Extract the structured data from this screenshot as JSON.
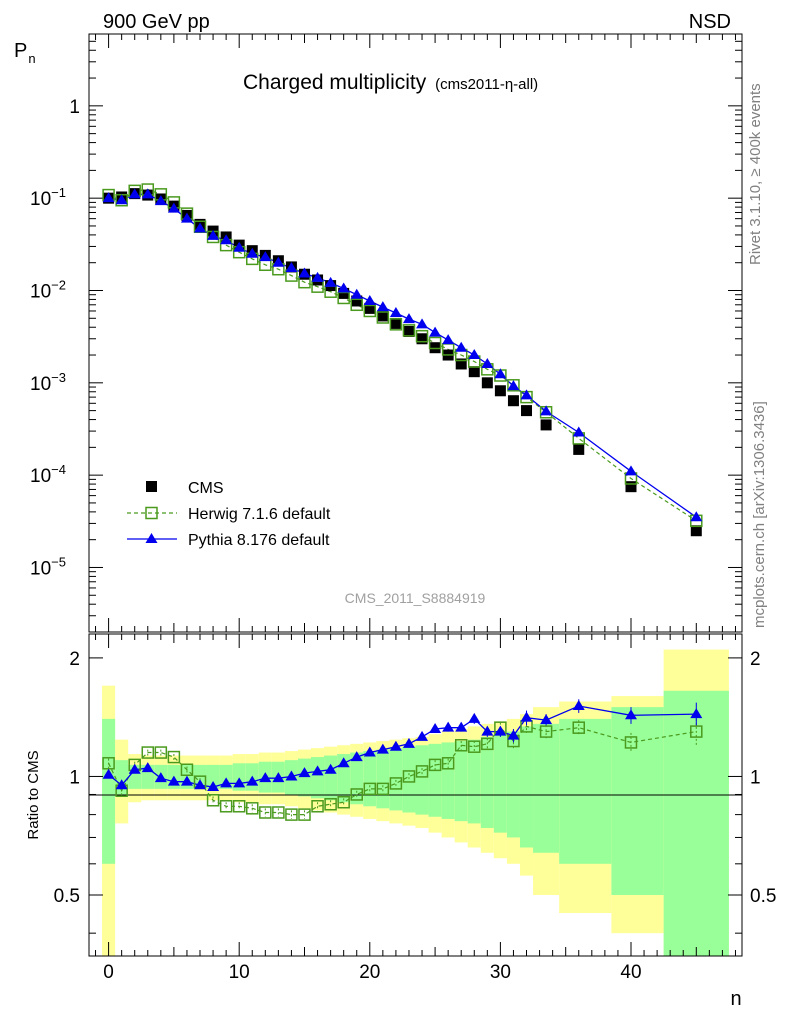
{
  "header": {
    "left": "900 GeV pp",
    "right": "NSD"
  },
  "title": {
    "main": "Charged multiplicity",
    "sub": "(cms2011-η-all)"
  },
  "watermark": "CMS_2011_S8884919",
  "side_texts": {
    "rivet": "Rivet 3.1.10, ≥ 400k events",
    "mcplots": "mcplots.cern.ch [arXiv:1306.3436]"
  },
  "colors": {
    "data": "#000000",
    "herwig": "#4a9a1e",
    "pythia": "#0000ee",
    "band_outer": "#ffff99",
    "band_inner": "#99ff99"
  },
  "legend": [
    {
      "label": "CMS",
      "icon": "square-filled"
    },
    {
      "label": "Herwig 7.1.6 default",
      "icon": "square-open-dashed"
    },
    {
      "label": "Pythia 8.176 default",
      "icon": "triangle-filled-line"
    }
  ],
  "chart_data": [
    {
      "type": "scatter",
      "yscale": "log",
      "ylabel": "P_n",
      "ylim": [
        2e-06,
        6
      ],
      "xlim": [
        -1.5,
        48.5
      ],
      "yticks": [
        {
          "value": 1,
          "base": "1",
          "exp": ""
        },
        {
          "value": 0.1,
          "base": "10",
          "exp": "−1"
        },
        {
          "value": 0.01,
          "base": "10",
          "exp": "−2"
        },
        {
          "value": 0.001,
          "base": "10",
          "exp": "−3"
        },
        {
          "value": 0.0001,
          "base": "10",
          "exp": "−4"
        },
        {
          "value": 1e-05,
          "base": "10",
          "exp": "−5"
        }
      ],
      "series": [
        {
          "name": "CMS",
          "x": [
            0,
            1,
            2,
            3,
            4,
            5,
            6,
            7,
            8,
            9,
            10,
            11,
            12,
            13,
            14,
            15,
            16,
            17,
            18,
            19,
            20,
            21,
            22,
            23,
            24,
            25,
            26,
            27,
            28,
            29,
            30,
            31,
            32,
            33.5,
            36,
            40,
            45
          ],
          "values": [
            0.1,
            0.103,
            0.112,
            0.108,
            0.098,
            0.082,
            0.065,
            0.052,
            0.044,
            0.038,
            0.031,
            0.027,
            0.024,
            0.021,
            0.018,
            0.015,
            0.013,
            0.0113,
            0.0093,
            0.0077,
            0.0064,
            0.0053,
            0.0044,
            0.0036,
            0.003,
            0.0024,
            0.002,
            0.0016,
            0.00132,
            0.001,
            0.00082,
            0.00064,
            0.0005,
            0.00035,
            0.00019,
            7.5e-05,
            2.5e-05
          ]
        },
        {
          "name": "Herwig 7.1.6 default",
          "x": [
            0,
            1,
            2,
            3,
            4,
            5,
            6,
            7,
            8,
            9,
            10,
            11,
            12,
            13,
            14,
            15,
            16,
            17,
            18,
            19,
            20,
            21,
            22,
            23,
            24,
            25,
            26,
            27,
            28,
            29,
            30,
            31,
            32,
            33.5,
            36,
            40,
            45
          ],
          "values": [
            0.108,
            0.095,
            0.12,
            0.124,
            0.11,
            0.09,
            0.068,
            0.049,
            0.038,
            0.031,
            0.026,
            0.022,
            0.019,
            0.017,
            0.0145,
            0.0123,
            0.011,
            0.0097,
            0.0083,
            0.007,
            0.006,
            0.0051,
            0.0043,
            0.0037,
            0.0032,
            0.0027,
            0.0023,
            0.002,
            0.0017,
            0.0014,
            0.0012,
            0.00094,
            0.0007,
            0.00048,
            0.00025,
            9.2e-05,
            3.2e-05
          ]
        },
        {
          "name": "Pythia 8.176 default",
          "x": [
            0,
            1,
            2,
            3,
            4,
            5,
            6,
            7,
            8,
            9,
            10,
            11,
            12,
            13,
            14,
            15,
            16,
            17,
            18,
            19,
            20,
            21,
            22,
            23,
            24,
            25,
            26,
            27,
            28,
            29,
            30,
            31,
            32,
            33.5,
            36,
            40,
            45
          ],
          "values": [
            0.1,
            0.095,
            0.11,
            0.11,
            0.093,
            0.077,
            0.06,
            0.047,
            0.039,
            0.035,
            0.029,
            0.025,
            0.023,
            0.02,
            0.0175,
            0.0153,
            0.0137,
            0.0121,
            0.0105,
            0.009,
            0.0077,
            0.0066,
            0.0057,
            0.0049,
            0.0043,
            0.0035,
            0.0029,
            0.0024,
            0.002,
            0.0016,
            0.00124,
            0.00092,
            0.00073,
            0.00049,
            0.00029,
            0.00011,
            3.5e-05
          ]
        }
      ]
    },
    {
      "type": "scatter",
      "ylabel": "Ratio to CMS",
      "xlabel": "n",
      "ylim": [
        0.35,
        2.3
      ],
      "xlim": [
        -1.5,
        48.5
      ],
      "xticks": [
        0,
        10,
        20,
        30,
        40
      ],
      "yticks": [
        0.5,
        1,
        2
      ],
      "bands": {
        "edges": [
          -0.5,
          0.5,
          1.5,
          2.5,
          3.5,
          4.5,
          5.5,
          6.5,
          7.5,
          8.5,
          9.5,
          10.5,
          11.5,
          12.5,
          13.5,
          14.5,
          15.5,
          16.5,
          17.5,
          18.5,
          19.5,
          20.5,
          21.5,
          22.5,
          23.5,
          24.5,
          25.5,
          26.5,
          27.5,
          28.5,
          29.5,
          30.5,
          31.5,
          32.5,
          34.5,
          38.5,
          42.5,
          47.5
        ],
        "outer": [
          0.7,
          0.24,
          0.14,
          0.13,
          0.13,
          0.13,
          0.13,
          0.13,
          0.13,
          0.13,
          0.14,
          0.14,
          0.15,
          0.15,
          0.16,
          0.17,
          0.18,
          0.19,
          0.2,
          0.21,
          0.22,
          0.23,
          0.24,
          0.25,
          0.26,
          0.28,
          0.3,
          0.32,
          0.34,
          0.36,
          0.38,
          0.4,
          0.44,
          0.5,
          0.55,
          0.6,
          1.1
        ],
        "inner": [
          0.4,
          0.1,
          0.07,
          0.07,
          0.07,
          0.07,
          0.07,
          0.07,
          0.07,
          0.07,
          0.08,
          0.08,
          0.09,
          0.09,
          0.1,
          0.11,
          0.12,
          0.13,
          0.14,
          0.15,
          0.16,
          0.17,
          0.18,
          0.19,
          0.2,
          0.21,
          0.22,
          0.23,
          0.24,
          0.26,
          0.28,
          0.3,
          0.34,
          0.36,
          0.4,
          0.5,
          0.65
        ]
      },
      "series": [
        {
          "name": "Herwig 7.1.6 default",
          "x": [
            0,
            1,
            2,
            3,
            4,
            5,
            6,
            7,
            8,
            9,
            10,
            11,
            12,
            13,
            14,
            15,
            16,
            17,
            18,
            19,
            20,
            21,
            22,
            23,
            24,
            25,
            26,
            27,
            28,
            29,
            30,
            31,
            32,
            33.5,
            36,
            40,
            45
          ],
          "values": [
            1.08,
            0.92,
            1.07,
            1.15,
            1.15,
            1.12,
            1.04,
            0.97,
            0.87,
            0.84,
            0.84,
            0.83,
            0.81,
            0.81,
            0.8,
            0.8,
            0.84,
            0.85,
            0.86,
            0.9,
            0.93,
            0.93,
            0.96,
            1.0,
            1.03,
            1.07,
            1.08,
            1.2,
            1.19,
            1.21,
            1.33,
            1.23,
            1.34,
            1.3,
            1.33,
            1.22,
            1.3
          ]
        },
        {
          "name": "Pythia 8.176 default",
          "x": [
            0,
            1,
            2,
            3,
            4,
            5,
            6,
            7,
            8,
            9,
            10,
            11,
            12,
            13,
            14,
            15,
            16,
            17,
            18,
            19,
            20,
            21,
            22,
            23,
            24,
            25,
            26,
            27,
            28,
            29,
            30,
            31,
            32,
            33.5,
            36,
            40,
            45
          ],
          "values": [
            1.01,
            0.95,
            1.04,
            1.05,
            0.99,
            0.97,
            0.97,
            0.95,
            0.94,
            0.96,
            0.96,
            0.97,
            0.99,
            0.99,
            1.0,
            1.02,
            1.03,
            1.04,
            1.08,
            1.12,
            1.15,
            1.17,
            1.19,
            1.21,
            1.26,
            1.32,
            1.33,
            1.33,
            1.4,
            1.3,
            1.3,
            1.27,
            1.41,
            1.39,
            1.51,
            1.43,
            1.44
          ]
        }
      ],
      "errors": {
        "Herwig 7.1.6 default": [
          0.03,
          0.03,
          0.02,
          0.02,
          0.02,
          0.02,
          0.02,
          0.02,
          0.02,
          0.02,
          0.02,
          0.02,
          0.02,
          0.02,
          0.02,
          0.02,
          0.02,
          0.02,
          0.02,
          0.02,
          0.02,
          0.02,
          0.02,
          0.02,
          0.02,
          0.03,
          0.03,
          0.03,
          0.04,
          0.04,
          0.04,
          0.05,
          0.05,
          0.05,
          0.06,
          0.07,
          0.1
        ],
        "Pythia 8.176 default": [
          0.02,
          0.02,
          0.02,
          0.02,
          0.02,
          0.02,
          0.02,
          0.02,
          0.02,
          0.02,
          0.02,
          0.02,
          0.02,
          0.02,
          0.02,
          0.02,
          0.02,
          0.02,
          0.02,
          0.02,
          0.02,
          0.02,
          0.02,
          0.02,
          0.02,
          0.03,
          0.03,
          0.03,
          0.04,
          0.04,
          0.04,
          0.05,
          0.06,
          0.05,
          0.06,
          0.07,
          0.1
        ]
      }
    }
  ]
}
